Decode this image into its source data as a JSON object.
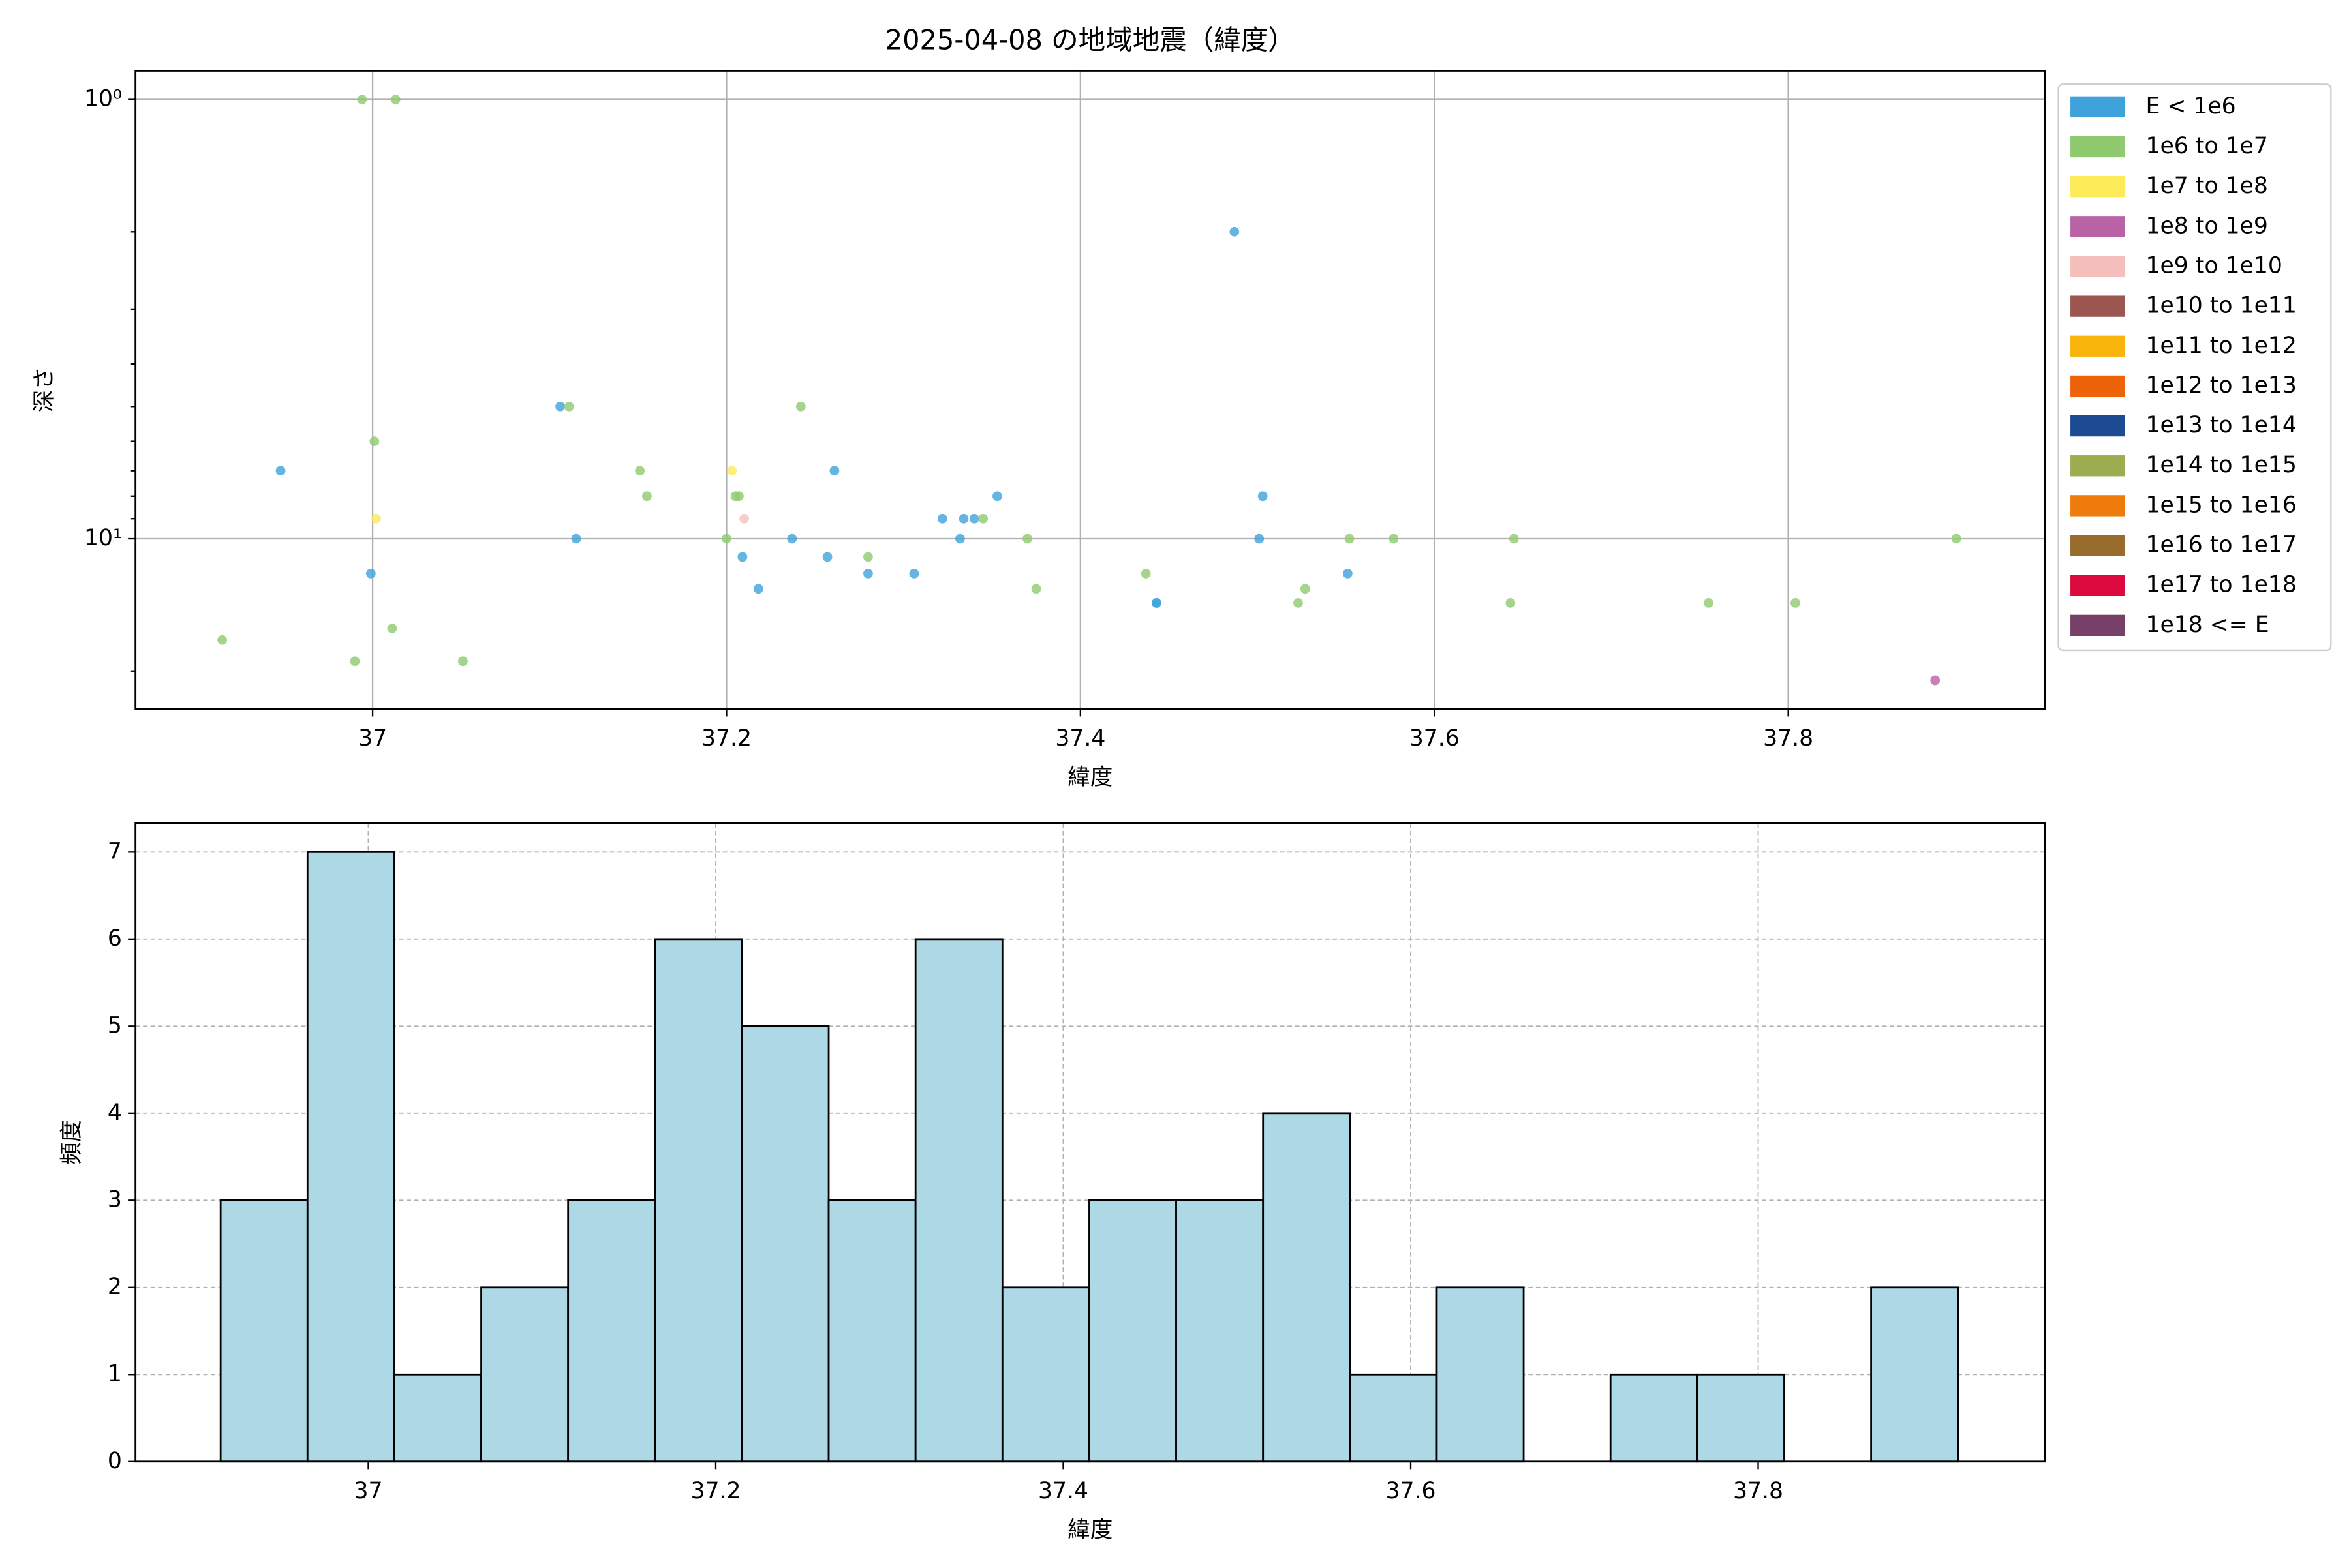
{
  "chart_data": [
    {
      "type": "scatter",
      "title": "2025-04-08 の地域地震（緯度）",
      "xlabel": "緯度",
      "ylabel": "深さ",
      "log_y": true,
      "grid": true,
      "legend": "outside right",
      "xlim": [
        36.866,
        37.945
      ],
      "xticks": [
        37.0,
        37.2,
        37.4,
        37.6,
        37.8
      ],
      "ylim": [
        24.4,
        0.86
      ],
      "yticks": [
        {
          "value": 1,
          "label": "10⁰"
        },
        {
          "value": 10,
          "label": "10¹"
        }
      ],
      "yminorticks": [
        2,
        3,
        4,
        5,
        6,
        7,
        8,
        9,
        20
      ],
      "series": [
        {
          "name": "E < 1e6",
          "color": "#3fa2dc",
          "x": [
            37.487,
            37.106,
            36.948,
            37.261,
            37.353,
            37.503,
            37.322,
            37.334,
            37.34,
            37.115,
            37.237,
            37.332,
            37.501,
            37.209,
            37.257,
            36.999,
            37.28,
            37.306,
            37.551,
            37.218,
            37.443,
            37.443
          ],
          "y": [
            2.0,
            5.0,
            7.0,
            7.0,
            8.0,
            8.0,
            9.0,
            9.0,
            9.0,
            10,
            10,
            10,
            10,
            11,
            11,
            12,
            12,
            12,
            12,
            13,
            14,
            14
          ]
        },
        {
          "name": "1e6 to 1e7",
          "color": "#8fca6e",
          "x": [
            36.994,
            37.013,
            37.001,
            37.111,
            37.242,
            37.151,
            37.155,
            37.205,
            37.207,
            37.2,
            37.345,
            37.37,
            37.28,
            37.375,
            37.437,
            37.527,
            37.523,
            37.552,
            37.577,
            37.645,
            37.643,
            37.755,
            37.804,
            37.895,
            36.915,
            36.99,
            37.011,
            37.051
          ],
          "y": [
            1.0,
            1.0,
            6.0,
            5.0,
            5.0,
            7.0,
            8.0,
            8.0,
            8.0,
            10,
            9.0,
            10,
            11,
            13,
            12,
            13,
            14,
            10,
            10,
            10,
            14,
            14,
            14,
            10,
            17,
            19,
            16,
            19
          ]
        },
        {
          "name": "1e7 to 1e8",
          "color": "#fdeb5a",
          "x": [
            37.002,
            37.203
          ],
          "y": [
            9.0,
            7.0
          ]
        },
        {
          "name": "1e8 to 1e9",
          "color": "#b962a5",
          "x": [
            37.883
          ],
          "y": [
            21
          ]
        },
        {
          "name": "1e9 to 1e10",
          "color": "#f5c0bb",
          "x": [
            37.21
          ],
          "y": [
            9.0
          ]
        },
        {
          "name": "1e10 to 1e11",
          "color": "#9b5650",
          "x": [],
          "y": []
        },
        {
          "name": "1e11 to 1e12",
          "color": "#f8b40a",
          "x": [],
          "y": []
        },
        {
          "name": "1e12 to 1e13",
          "color": "#ee6309",
          "x": [],
          "y": []
        },
        {
          "name": "1e13 to 1e14",
          "color": "#1d4b91",
          "x": [],
          "y": []
        },
        {
          "name": "1e14 to 1e15",
          "color": "#9cad50",
          "x": [],
          "y": []
        },
        {
          "name": "1e15 to 1e16",
          "color": "#ef7b0d",
          "x": [],
          "y": []
        },
        {
          "name": "1e16 to 1e17",
          "color": "#976c2c",
          "x": [],
          "y": []
        },
        {
          "name": "1e17 to 1e18",
          "color": "#dc0a3e",
          "x": [],
          "y": []
        },
        {
          "name": "1e18 <= E",
          "color": "#764068",
          "x": [],
          "y": []
        }
      ]
    },
    {
      "type": "histogram",
      "xlabel": "緯度",
      "ylabel": "頻度",
      "grid": true,
      "color": "#add8e6",
      "edgecolor": "#000000",
      "xlim": [
        36.866,
        37.965
      ],
      "xticks": [
        37.0,
        37.2,
        37.4,
        37.6,
        37.8
      ],
      "ylim": [
        0,
        7.33
      ],
      "yticks": [
        0,
        1,
        2,
        3,
        4,
        5,
        6,
        7
      ],
      "bins": [
        36.915,
        36.965,
        37.015,
        37.065,
        37.115,
        37.165,
        37.215,
        37.265,
        37.315,
        37.365,
        37.415,
        37.465,
        37.515,
        37.565,
        37.615,
        37.665,
        37.715,
        37.765,
        37.815,
        37.865,
        37.915
      ],
      "values": [
        3,
        7,
        1,
        2,
        3,
        6,
        5,
        3,
        6,
        2,
        3,
        3,
        4,
        1,
        2,
        0,
        1,
        1,
        0,
        2
      ]
    }
  ]
}
